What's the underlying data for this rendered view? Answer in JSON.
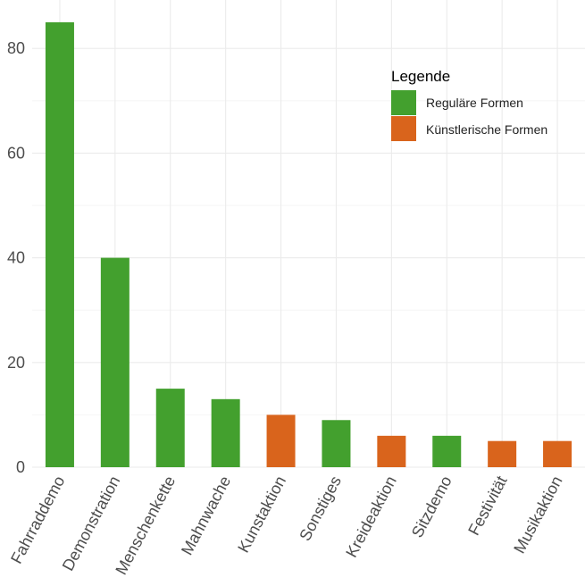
{
  "chart_data": {
    "type": "bar",
    "title": "",
    "xlabel": "",
    "ylabel": "",
    "categories": [
      "Fahrraddemo",
      "Demonstration",
      "Menschenkette",
      "Mahnwache",
      "Kunstaktion",
      "Sonstiges",
      "Kreideaktion",
      "Sitzdemo",
      "Festivität",
      "Musikaktion"
    ],
    "values": [
      85,
      40,
      15,
      13,
      10,
      9,
      6,
      6,
      5,
      5
    ],
    "groups": [
      "Reguläre Formen",
      "Reguläre Formen",
      "Reguläre Formen",
      "Reguläre Formen",
      "Künstlerische Formen",
      "Reguläre Formen",
      "Künstlerische Formen",
      "Reguläre Formen",
      "Künstlerische Formen",
      "Künstlerische Formen"
    ],
    "yticks": [
      0,
      20,
      40,
      60,
      80
    ],
    "ylim": [
      0,
      88
    ],
    "grid": true,
    "legend": {
      "title": "Legende",
      "placement": "top-right",
      "entries": [
        {
          "label": "Reguläre Formen",
          "color": "#43a02e"
        },
        {
          "label": "Künstlerische Formen",
          "color": "#d9641c"
        }
      ]
    }
  }
}
